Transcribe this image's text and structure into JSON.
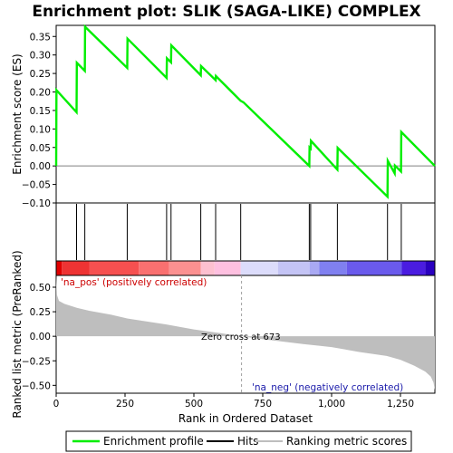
{
  "chart_data": [
    {
      "type": "line",
      "title": "Enrichment plot: SLIK (SAGA-LIKE) COMPLEX",
      "ylabel": "Enrichment score (ES)",
      "xlim": [
        0,
        1375
      ],
      "ylim": [
        -0.1,
        0.38
      ],
      "yticks": [
        -0.1,
        -0.05,
        0.0,
        0.05,
        0.1,
        0.15,
        0.2,
        0.25,
        0.3,
        0.35
      ],
      "ytick_labels": [
        "−0.10",
        "−0.05",
        "0.00",
        "0.05",
        "0.10",
        "0.15",
        "0.20",
        "0.25",
        "0.30",
        "0.35"
      ],
      "series": [
        {
          "name": "Enrichment profile",
          "color": "#00ee00",
          "x": [
            0,
            1,
            74,
            75,
            104,
            105,
            258,
            259,
            401,
            402,
            417,
            418,
            525,
            526,
            579,
            580,
            670,
            680,
            919,
            920,
            924,
            925,
            1021,
            1022,
            1203,
            1204,
            1229,
            1230,
            1252,
            1253,
            1375
          ],
          "y": [
            0.0,
            0.205,
            0.145,
            0.279,
            0.257,
            0.376,
            0.265,
            0.344,
            0.238,
            0.291,
            0.28,
            0.326,
            0.245,
            0.27,
            0.232,
            0.243,
            0.176,
            0.172,
            0.0,
            0.05,
            0.047,
            0.068,
            -0.01,
            0.049,
            -0.083,
            0.014,
            -0.02,
            0.001,
            -0.015,
            0.092,
            0.0
          ]
        }
      ],
      "hits": [
        74,
        104,
        258,
        401,
        417,
        525,
        579,
        670,
        919,
        924,
        1021,
        1203,
        1253
      ],
      "grid": false
    },
    {
      "type": "area",
      "xlabel": "Rank in Ordered Dataset",
      "ylabel": "Ranked list metric (PreRanked)",
      "xlim": [
        0,
        1375
      ],
      "ylim": [
        -0.58,
        0.62
      ],
      "xticks": [
        0,
        250,
        500,
        750,
        1000,
        1250
      ],
      "xtick_labels": [
        "0",
        "250",
        "500",
        "750",
        "1,000",
        "1,250"
      ],
      "yticks": [
        -0.5,
        -0.25,
        0.0,
        0.25,
        0.5
      ],
      "ytick_labels": [
        "−0.50",
        "−0.25",
        "0.00",
        "0.25",
        "0.50"
      ],
      "series": [
        {
          "name": "Ranking metric scores",
          "color": "#bebebe",
          "x": [
            0,
            3,
            10,
            30,
            75,
            120,
            200,
            260,
            330,
            400,
            500,
            600,
            673,
            750,
            900,
            1000,
            1100,
            1200,
            1250,
            1300,
            1340,
            1360,
            1370,
            1375
          ],
          "y": [
            0.62,
            0.42,
            0.36,
            0.33,
            0.29,
            0.26,
            0.22,
            0.18,
            0.15,
            0.12,
            0.07,
            0.03,
            0.0,
            -0.03,
            -0.08,
            -0.11,
            -0.16,
            -0.2,
            -0.24,
            -0.3,
            -0.36,
            -0.41,
            -0.47,
            -0.55
          ]
        }
      ],
      "annotations": [
        "Zero cross at 673",
        "'na_pos' (positively correlated)",
        "'na_neg' (negatively correlated)"
      ],
      "zero_cross": 673
    }
  ],
  "color_bar": {
    "segments": [
      {
        "end": 20,
        "color": "#e00000"
      },
      {
        "end": 120,
        "color": "#ee3333"
      },
      {
        "end": 300,
        "color": "#f65050"
      },
      {
        "end": 410,
        "color": "#f97070"
      },
      {
        "end": 525,
        "color": "#fb9090"
      },
      {
        "end": 575,
        "color": "#fdc0d0"
      },
      {
        "end": 670,
        "color": "#fec0e0"
      },
      {
        "end": 805,
        "color": "#dcdcfb"
      },
      {
        "end": 920,
        "color": "#c4c4f5"
      },
      {
        "end": 955,
        "color": "#a9a9f3"
      },
      {
        "end": 1055,
        "color": "#8080f0"
      },
      {
        "end": 1255,
        "color": "#6a5aec"
      },
      {
        "end": 1340,
        "color": "#4a1ce0"
      },
      {
        "end": 1375,
        "color": "#2a00c0"
      }
    ]
  },
  "legend": [
    {
      "label": "Enrichment profile",
      "color": "#00ee00"
    },
    {
      "label": "Hits",
      "color": "#000000"
    },
    {
      "label": "Ranking metric scores",
      "color": "#bebebe"
    }
  ]
}
